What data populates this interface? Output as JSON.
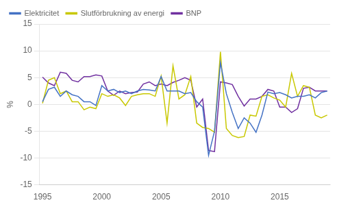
{
  "chart_data": {
    "type": "line",
    "ylabel": "%",
    "x": [
      1995.0,
      1995.5,
      1996.0,
      1996.5,
      1997.0,
      1997.5,
      1998.0,
      1998.5,
      1999.0,
      1999.5,
      2000.0,
      2000.5,
      2001.0,
      2001.5,
      2002.0,
      2002.5,
      2003.0,
      2003.5,
      2004.0,
      2004.5,
      2005.0,
      2005.5,
      2006.0,
      2006.5,
      2007.0,
      2007.5,
      2008.0,
      2008.5,
      2009.0,
      2009.5,
      2010.0,
      2010.5,
      2011.0,
      2011.5,
      2012.0,
      2012.5,
      2013.0,
      2013.5,
      2014.0,
      2014.5,
      2015.0,
      2015.5,
      2016.0,
      2016.5,
      2017.0,
      2017.5,
      2018.0,
      2018.5,
      2019.0
    ],
    "series": [
      {
        "name": "Elektricitet",
        "color": "#4472C4",
        "values": [
          0.5,
          2.8,
          3.2,
          1.5,
          2.5,
          1.8,
          1.5,
          0.5,
          0.5,
          -0.2,
          3.5,
          2.5,
          2.8,
          2.2,
          2.5,
          2.0,
          2.5,
          2.8,
          2.7,
          2.5,
          5.2,
          2.5,
          2.5,
          2.5,
          2.0,
          2.2,
          0.5,
          -0.5,
          -9.5,
          -5.0,
          7.8,
          2.0,
          -1.5,
          -4.5,
          -2.5,
          -3.5,
          -5.2,
          -2.0,
          2.3,
          2.0,
          2.2,
          1.8,
          1.2,
          1.5,
          1.5,
          1.8,
          1.2,
          2.2,
          2.5
        ]
      },
      {
        "name": "Slutförbrukning av energi",
        "color": "#c8c800",
        "values": [
          0.2,
          4.5,
          5.0,
          2.0,
          2.5,
          0.5,
          0.5,
          -1.0,
          -0.5,
          -0.8,
          2.0,
          1.5,
          1.8,
          1.2,
          -0.2,
          1.5,
          1.8,
          2.0,
          2.0,
          1.5,
          5.3,
          -3.5,
          7.2,
          1.0,
          1.8,
          5.2,
          -3.5,
          -4.3,
          -4.5,
          -5.2,
          9.8,
          -4.5,
          -5.8,
          -6.2,
          -6.0,
          -2.0,
          -2.2,
          1.5,
          1.8,
          1.2,
          0.8,
          -0.5,
          5.8,
          1.5,
          3.5,
          3.2,
          -2.0,
          -2.5,
          -2.0
        ]
      },
      {
        "name": "BNP",
        "color": "#7030A0",
        "values": [
          5.1,
          4.0,
          3.5,
          6.0,
          5.8,
          4.5,
          4.2,
          5.2,
          5.2,
          5.5,
          5.3,
          2.5,
          1.7,
          2.5,
          2.0,
          2.2,
          2.3,
          3.8,
          4.2,
          3.5,
          3.8,
          3.5,
          4.1,
          4.5,
          5.0,
          4.5,
          -0.5,
          1.0,
          -8.6,
          -8.8,
          4.2,
          4.0,
          3.7,
          1.5,
          -0.3,
          1.0,
          1.0,
          1.5,
          2.8,
          2.5,
          -0.5,
          -0.5,
          -1.5,
          -0.8,
          3.0,
          3.2,
          2.5,
          2.5,
          2.5
        ]
      }
    ],
    "xlim": [
      1994.75,
      2019.25
    ],
    "xticks": [
      1995,
      2000,
      2005,
      2010,
      2015
    ],
    "ylim": [
      -15,
      15
    ],
    "yticks": [
      -15,
      -10,
      -5,
      0,
      5,
      10,
      15
    ],
    "grid": "y",
    "legend": "upper left"
  }
}
